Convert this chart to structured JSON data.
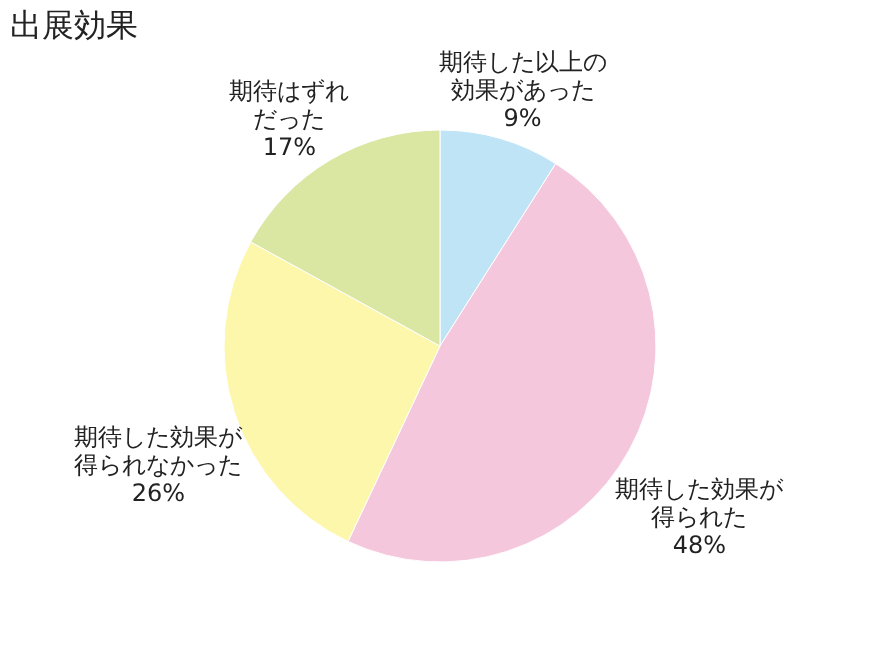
{
  "chart_data": {
    "type": "pie",
    "title": "出展効果",
    "categories": [
      "期待した以上の効果があった",
      "期待した効果が得られた",
      "期待した効果が得られなかった",
      "期待はずれだった"
    ],
    "values": [
      9,
      48,
      26,
      17
    ],
    "value_labels": [
      "9%",
      "48%",
      "26%",
      "17%"
    ],
    "colors": [
      "#bfe4f6",
      "#f4c7dd",
      "#fdf7ab",
      "#dae7a3"
    ],
    "legend": false
  }
}
